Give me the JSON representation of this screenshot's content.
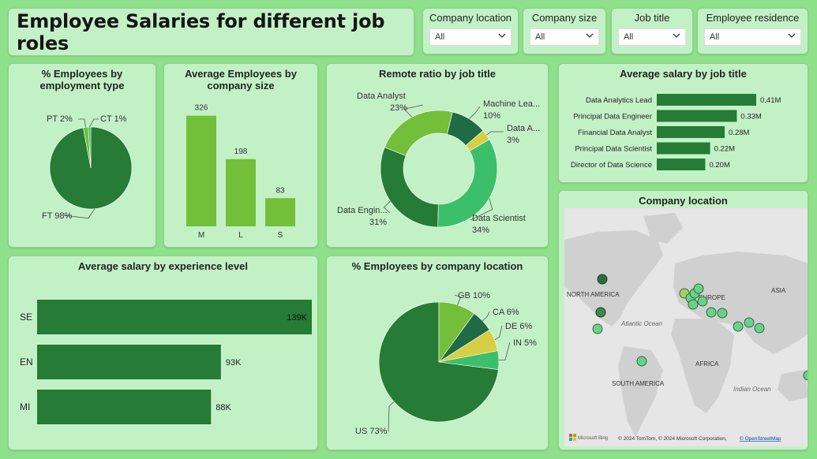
{
  "header": {
    "title": "Employee Salaries for different job roles"
  },
  "filters": [
    {
      "label": "Company location",
      "value": "All"
    },
    {
      "label": "Company size",
      "value": "All"
    },
    {
      "label": "Job title",
      "value": "All"
    },
    {
      "label": "Employee residence",
      "value": "All"
    }
  ],
  "colors": {
    "dark": "#267b36",
    "lime": "#73bf3a",
    "mid": "#3cbf6a",
    "deep": "#1f6b45",
    "yellow": "#d6cf43",
    "bar": "#267b36",
    "map_pin": "#6bd08a"
  },
  "chart_data": [
    {
      "id": "employment_type",
      "type": "pie",
      "title": "% Employees by employment type",
      "labels": [
        "FT",
        "PT",
        "CT"
      ],
      "values": [
        98,
        2,
        1
      ],
      "display": [
        "FT 98%",
        "PT 2%",
        "CT 1%"
      ]
    },
    {
      "id": "company_size",
      "type": "bar",
      "title": "Average Employees by company size",
      "categories": [
        "M",
        "L",
        "S"
      ],
      "values": [
        326,
        198,
        83
      ],
      "ylim": [
        0,
        330
      ]
    },
    {
      "id": "remote_ratio",
      "type": "pie",
      "donut": true,
      "title": "Remote ratio by job title",
      "labels": [
        "Data Analyst",
        "Machine Lea...",
        "Data A...",
        "Data Scientist",
        "Data Engin..."
      ],
      "values": [
        23,
        10,
        3,
        34,
        31
      ],
      "display": [
        "23%",
        "10%",
        "3%",
        "34%",
        "31%"
      ]
    },
    {
      "id": "salary_by_title",
      "type": "bar",
      "orientation": "horizontal",
      "title": "Average salary by job title",
      "categories": [
        "Data Analytics Lead",
        "Principal Data Engineer",
        "Financial Data Analyst",
        "Principal Data Scientist",
        "Director of Data Science"
      ],
      "values": [
        0.41,
        0.33,
        0.28,
        0.22,
        0.2
      ],
      "display": [
        "0.41M",
        "0.33M",
        "0.28M",
        "0.22M",
        "0.20M"
      ],
      "xlim": [
        0,
        0.41
      ]
    },
    {
      "id": "salary_by_experience",
      "type": "bar",
      "orientation": "horizontal",
      "title": "Average salary by experience level",
      "categories": [
        "SE",
        "EN",
        "MI"
      ],
      "values": [
        139,
        93,
        88
      ],
      "display": [
        "139K",
        "93K",
        "88K"
      ],
      "xlim": [
        0,
        139
      ]
    },
    {
      "id": "company_location",
      "type": "pie",
      "title": "% Employees by company location",
      "labels": [
        "US",
        "GB",
        "CA",
        "DE",
        "IN"
      ],
      "values": [
        73,
        10,
        6,
        6,
        5
      ],
      "display": [
        "US 73%",
        "GB 10%",
        "CA 6%",
        "DE 6%",
        "IN 5%"
      ]
    }
  ],
  "map": {
    "title": "Company location",
    "labels": {
      "north_america": "NORTH AMERICA",
      "europe": "EUROPE",
      "asia": "ASIA",
      "atlantic": "Atlantic Ocean",
      "africa": "AFRICA",
      "south_america": "SOUTH AMERICA",
      "indian": "Indian Ocean"
    },
    "logo": "Microsoft Bing",
    "attribution": "© 2024 TomTom, © 2024 Microsoft Corporation,",
    "attribution_link": "© OpenStreetMap"
  }
}
